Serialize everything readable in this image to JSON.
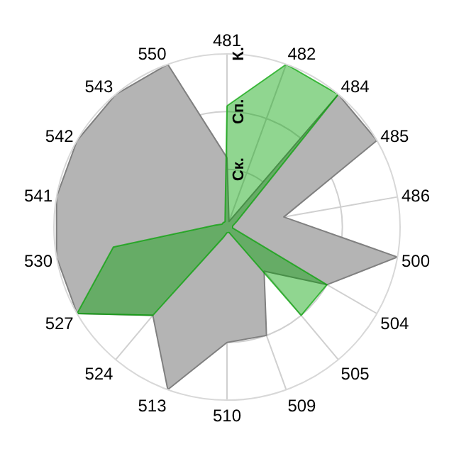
{
  "chart_data": {
    "type": "radar",
    "categories": [
      "481",
      "482",
      "484",
      "485",
      "486",
      "500",
      "504",
      "505",
      "509",
      "510",
      "513",
      "524",
      "527",
      "530",
      "541",
      "542",
      "543",
      "550"
    ],
    "series": [
      {
        "color": "#b4b4b4",
        "values": [
          1.2,
          0.1,
          3,
          3,
          1.0,
          3,
          2.0,
          1.0,
          2.0,
          2.0,
          3,
          2.0,
          3,
          3,
          3,
          3,
          3,
          3
        ]
      },
      {
        "color": "#03a203",
        "values": [
          2.1,
          3,
          3,
          0.2,
          0.1,
          0.1,
          2.0,
          2.0,
          0.1,
          0.1,
          0.2,
          2.0,
          3,
          2.0,
          0.2,
          0.1,
          0.1,
          0.1
        ]
      }
    ],
    "ylim": [
      0,
      3
    ],
    "yticks": [
      {
        "value": 1,
        "label": "Ск."
      },
      {
        "value": 2,
        "label": "Сп."
      },
      {
        "value": 3,
        "label": "К."
      }
    ],
    "grid": true,
    "marker": "none"
  }
}
